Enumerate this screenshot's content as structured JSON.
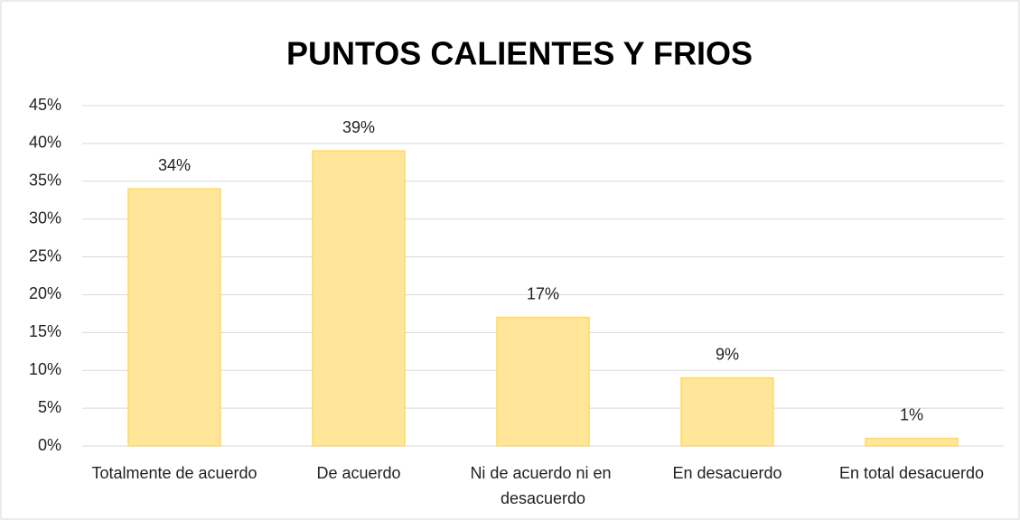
{
  "chart_data": {
    "type": "bar",
    "title": "PUNTOS CALIENTES Y FRIOS",
    "categories": [
      "Totalmente de acuerdo",
      "De acuerdo",
      "Ni de acuerdo ni en desacuerdo",
      "En desacuerdo",
      "En total desacuerdo"
    ],
    "values": [
      34,
      39,
      17,
      9,
      1
    ],
    "value_labels": [
      "34%",
      "39%",
      "17%",
      "9%",
      "1%"
    ],
    "color": "#ffe699",
    "edge_color": "#ffd966",
    "ylim": [
      0,
      45
    ],
    "yticks": [
      {
        "value": 0,
        "label": "0%"
      },
      {
        "value": 5,
        "label": "5%"
      },
      {
        "value": 10,
        "label": "10%"
      },
      {
        "value": 15,
        "label": "15%"
      },
      {
        "value": 20,
        "label": "20%"
      },
      {
        "value": 25,
        "label": "25%"
      },
      {
        "value": 30,
        "label": "30%"
      },
      {
        "value": 35,
        "label": "35%"
      },
      {
        "value": 40,
        "label": "40%"
      },
      {
        "value": 45,
        "label": "45%"
      }
    ],
    "grid": true
  }
}
